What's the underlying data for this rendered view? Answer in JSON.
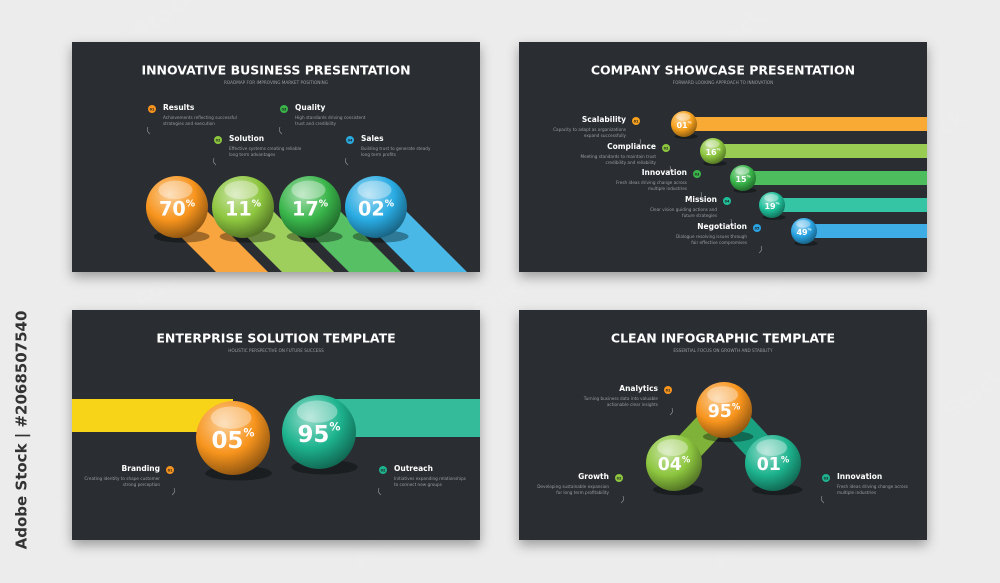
{
  "side_label": "Adobe Stock | #2068507540",
  "watermark": "Adobe Stock",
  "slides": [
    {
      "title": "INNOVATIVE BUSINESS PRESENTATION",
      "subtitle": "ROADMAP FOR IMPROVING MARKET POSITIONING",
      "items": [
        {
          "badge": "01",
          "label": "Results",
          "desc": [
            "Achievements reflecting successful",
            "strategies and execution"
          ]
        },
        {
          "badge": "02",
          "label": "Solution",
          "desc": [
            "Effective systems creating reliable",
            "long term advantages"
          ]
        },
        {
          "badge": "03",
          "label": "Quality",
          "desc": [
            "High standards driving consistent",
            "trust and credibility"
          ]
        },
        {
          "badge": "04",
          "label": "Sales",
          "desc": [
            "Building trust to generate steady",
            "long term profits"
          ]
        }
      ],
      "balls": [
        {
          "value": "70",
          "unit": "%",
          "color": "#f7941d"
        },
        {
          "value": "11",
          "unit": "%",
          "color": "#8dc63f"
        },
        {
          "value": "17",
          "unit": "%",
          "color": "#39b54a"
        },
        {
          "value": "02",
          "unit": "%",
          "color": "#29abe2"
        }
      ]
    },
    {
      "title": "COMPANY SHOWCASE PRESENTATION",
      "subtitle": "FORWARD LOOKING APPROACH TO INNOVATION",
      "items": [
        {
          "badge": "01",
          "label": "Scalability",
          "desc": [
            "Capacity to adapt as organizations",
            "expand successfully"
          ]
        },
        {
          "badge": "02",
          "label": "Compliance",
          "desc": [
            "Meeting standards to maintain trust",
            "credibility and reliability"
          ]
        },
        {
          "badge": "03",
          "label": "Innovation",
          "desc": [
            "Fresh ideas driving change across",
            "multiple industries"
          ]
        },
        {
          "badge": "04",
          "label": "Mission",
          "desc": [
            "Clear vision guiding actions and",
            "future strategies"
          ]
        },
        {
          "badge": "05",
          "label": "Negotiation",
          "desc": [
            "Dialogue resolving issues through",
            "fair effective compromises"
          ]
        }
      ],
      "balls": [
        {
          "value": "01",
          "unit": "%",
          "color": "#f7a11d"
        },
        {
          "value": "16",
          "unit": "%",
          "color": "#8dc63f"
        },
        {
          "value": "15",
          "unit": "%",
          "color": "#39b54a"
        },
        {
          "value": "19",
          "unit": "%",
          "color": "#1fbf9a"
        },
        {
          "value": "49",
          "unit": "%",
          "color": "#29a3e2"
        }
      ]
    },
    {
      "title": "ENTERPRISE SOLUTION TEMPLATE",
      "subtitle": "HOLISTIC PERSPECTIVE ON FUTURE SUCCESS",
      "items": [
        {
          "badge": "01",
          "label": "Branding",
          "desc": [
            "Creating identity to shape customer",
            "strong perception"
          ]
        },
        {
          "badge": "02",
          "label": "Outreach",
          "desc": [
            "Initiatives expanding relationships",
            "to connect new groups"
          ]
        }
      ],
      "balls": [
        {
          "value": "05",
          "unit": "%",
          "color": "#f7941d"
        },
        {
          "value": "95",
          "unit": "%",
          "color": "#1db38e"
        }
      ]
    },
    {
      "title": "CLEAN INFOGRAPHIC TEMPLATE",
      "subtitle": "ESSENTIAL FOCUS ON GROWTH AND STABILITY",
      "items": [
        {
          "badge": "01",
          "label": "Analytics",
          "desc": [
            "Turning business data into valuable",
            "actionable clear insights"
          ]
        },
        {
          "badge": "02",
          "label": "Growth",
          "desc": [
            "Developing sustainable expansion",
            "for long term profitability"
          ]
        },
        {
          "badge": "03",
          "label": "Innovation",
          "desc": [
            "Fresh ideas driving change across",
            "multiple industries"
          ]
        }
      ],
      "balls": [
        {
          "value": "95",
          "unit": "%",
          "color": "#f7941d"
        },
        {
          "value": "04",
          "unit": "%",
          "color": "#8dc63f"
        },
        {
          "value": "01",
          "unit": "%",
          "color": "#1db38e"
        }
      ]
    }
  ]
}
